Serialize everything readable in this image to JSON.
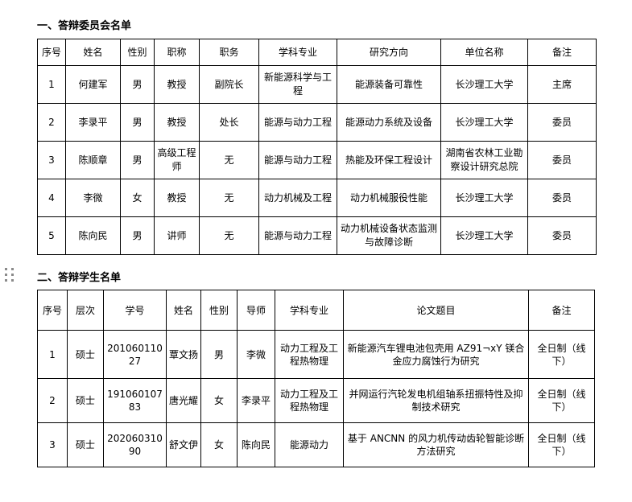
{
  "section1": {
    "title": "一、答辩委员会名单",
    "table": {
      "headers": [
        "序号",
        "姓名",
        "性别",
        "职称",
        "职务",
        "学科专业",
        "研究方向",
        "单位名称",
        "备注"
      ],
      "rows": [
        [
          "1",
          "何建军",
          "男",
          "教授",
          "副院长",
          "新能源科学与工程",
          "能源装备可靠性",
          "长沙理工大学",
          "主席"
        ],
        [
          "2",
          "李录平",
          "男",
          "教授",
          "处长",
          "能源与动力工程",
          "能源动力系统及设备",
          "长沙理工大学",
          "委员"
        ],
        [
          "3",
          "陈顺章",
          "男",
          "高级工程师",
          "无",
          "能源与动力工程",
          "热能及环保工程设计",
          "湖南省农林工业勘察设计研究总院",
          "委员"
        ],
        [
          "4",
          "李微",
          "女",
          "教授",
          "无",
          "动力机械及工程",
          "动力机械服役性能",
          "长沙理工大学",
          "委员"
        ],
        [
          "5",
          "陈向民",
          "男",
          "讲师",
          "无",
          "能源与动力工程",
          "动力机械设备状态监测与故障诊断",
          "长沙理工大学",
          "委员"
        ]
      ]
    }
  },
  "section2": {
    "title": "二、答辩学生名单",
    "table": {
      "headers": [
        "序号",
        "层次",
        "学号",
        "姓名",
        "性别",
        "导师",
        "学科专业",
        "论文题目",
        "备注"
      ],
      "rows": [
        [
          "1",
          "硕士",
          "20106011027",
          "覃文扬",
          "男",
          "李微",
          "动力工程及工程热物理",
          "新能源汽车锂电池包壳用 AZ91¬xY 镁合金应力腐蚀行为研究",
          "全日制（线下）"
        ],
        [
          "2",
          "硕士",
          "19106010783",
          "唐光耀",
          "女",
          "李录平",
          "动力工程及工程热物理",
          "并网运行汽轮发电机组轴系扭振特性及抑制技术研究",
          "全日制（线下）"
        ],
        [
          "3",
          "硕士",
          "20206031090",
          "舒文伊",
          "女",
          "陈向民",
          "能源动力",
          "基于 ANCNN 的风力机传动齿轮智能诊断方法研究",
          "全日制（线下）"
        ]
      ]
    }
  },
  "icons": {
    "drag_handle": "drag-handle-dots"
  },
  "colors": {
    "text": "#000000",
    "table_border": "#000000",
    "drag_handle_dot": "#8a8a8a",
    "page_background": "#ffffff"
  }
}
